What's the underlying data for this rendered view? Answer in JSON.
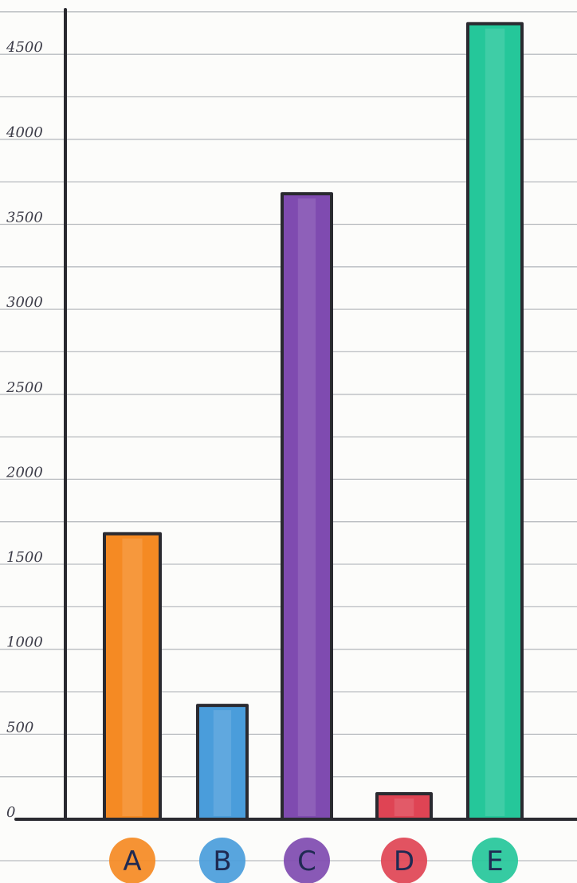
{
  "chart_data": {
    "type": "bar",
    "categories": [
      "A",
      "B",
      "C",
      "D",
      "E"
    ],
    "values": [
      1680,
      670,
      3680,
      150,
      4680
    ],
    "colors": [
      "#f58a23",
      "#4a9ddb",
      "#7f4bb0",
      "#df4454",
      "#25c79a"
    ],
    "xlabel": "",
    "ylabel": "",
    "ylim": [
      0,
      4500
    ],
    "yticks": [
      0,
      500,
      1000,
      1500,
      2000,
      2500,
      3000,
      3500,
      4000,
      4500
    ],
    "ytick_labels": [
      "0",
      "500",
      "1000",
      "1500",
      "2000",
      "2500",
      "3000",
      "3500",
      "4000",
      "4500"
    ],
    "grid": true,
    "legend": "none"
  }
}
